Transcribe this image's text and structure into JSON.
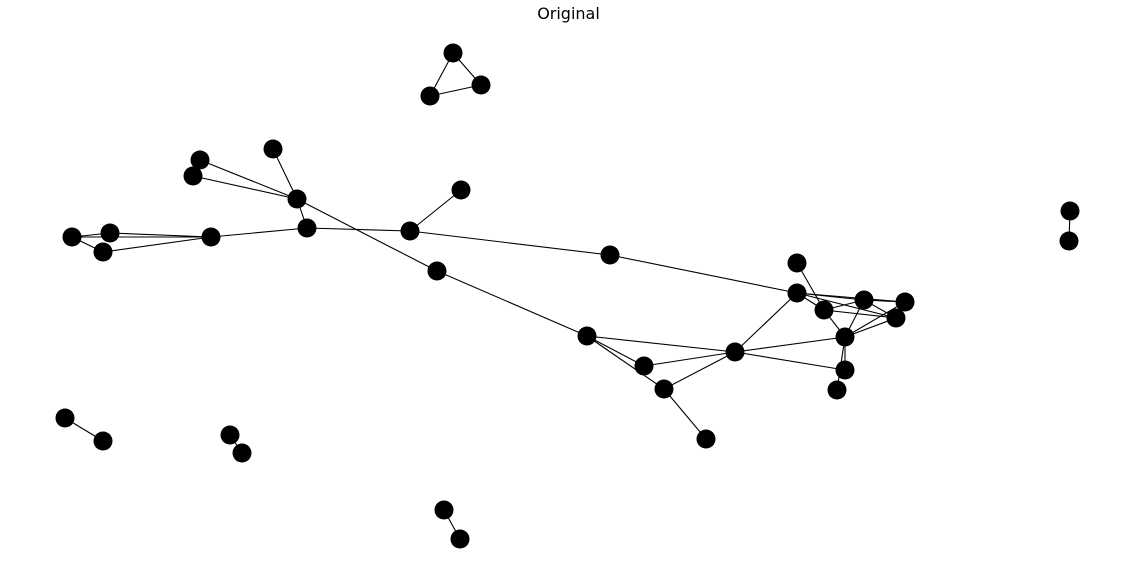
{
  "title": "Original",
  "colors": {
    "node": "#000000",
    "edge": "#000000",
    "background": "#ffffff"
  },
  "graph": {
    "nodes": [
      {
        "id": 0
      },
      {
        "id": 1
      },
      {
        "id": 2
      },
      {
        "id": 3
      },
      {
        "id": 4
      },
      {
        "id": 5
      },
      {
        "id": 6
      },
      {
        "id": 7
      },
      {
        "id": 8
      },
      {
        "id": 9
      },
      {
        "id": 10
      },
      {
        "id": 11
      },
      {
        "id": 12
      },
      {
        "id": 13
      },
      {
        "id": 14
      },
      {
        "id": 15
      },
      {
        "id": 16
      },
      {
        "id": 17
      },
      {
        "id": 18
      },
      {
        "id": 19
      },
      {
        "id": 20
      },
      {
        "id": 21
      },
      {
        "id": 22
      },
      {
        "id": 23
      },
      {
        "id": 24
      },
      {
        "id": 25
      },
      {
        "id": 26
      },
      {
        "id": 27
      },
      {
        "id": 28
      },
      {
        "id": 29
      },
      {
        "id": 30
      },
      {
        "id": 31
      },
      {
        "id": 32
      },
      {
        "id": 33
      },
      {
        "id": 34
      },
      {
        "id": 35
      },
      {
        "id": 36
      },
      {
        "id": 37
      },
      {
        "id": 38
      }
    ],
    "edges": [
      [
        0,
        1
      ],
      [
        1,
        2
      ],
      [
        2,
        0
      ],
      [
        3,
        6
      ],
      [
        4,
        6
      ],
      [
        5,
        6
      ],
      [
        6,
        7
      ],
      [
        3,
        4
      ],
      [
        3,
        5
      ],
      [
        7,
        8
      ],
      [
        7,
        10
      ],
      [
        10,
        9
      ],
      [
        10,
        11
      ],
      [
        8,
        12
      ],
      [
        12,
        13
      ],
      [
        13,
        17
      ],
      [
        11,
        14
      ],
      [
        14,
        15
      ],
      [
        14,
        16
      ],
      [
        14,
        17
      ],
      [
        15,
        16
      ],
      [
        16,
        17
      ],
      [
        17,
        20
      ],
      [
        17,
        23
      ],
      [
        18,
        19
      ],
      [
        19,
        20
      ],
      [
        19,
        21
      ],
      [
        19,
        22
      ],
      [
        20,
        21
      ],
      [
        20,
        22
      ],
      [
        20,
        23
      ],
      [
        20,
        24
      ],
      [
        21,
        22
      ],
      [
        21,
        23
      ],
      [
        22,
        23
      ],
      [
        23,
        24
      ],
      [
        23,
        25
      ],
      [
        26,
        28
      ],
      [
        27,
        28
      ],
      [
        28,
        29
      ],
      [
        26,
        27
      ],
      [
        26,
        29
      ],
      [
        29,
        30
      ],
      [
        27,
        30
      ],
      [
        31,
        32
      ],
      [
        33,
        34
      ],
      [
        35,
        36
      ],
      [
        37,
        38
      ]
    ]
  }
}
